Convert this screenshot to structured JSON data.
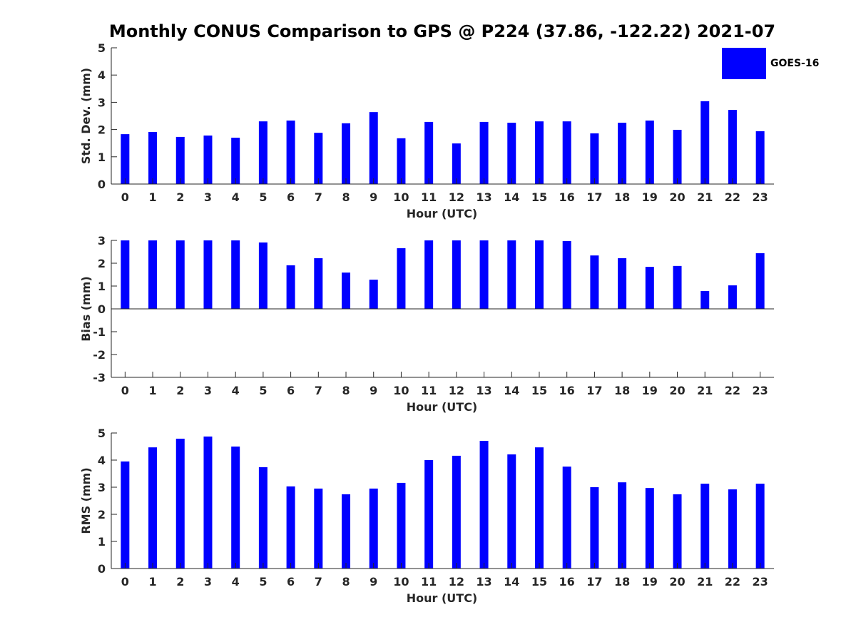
{
  "chart_data": {
    "title": "Monthly CONUS Comparison to GPS @ P224 (37.86, -122.22) 2021-07",
    "legend": {
      "entries": [
        "GOES-16"
      ],
      "placement": "top-right"
    },
    "colors": {
      "bar": "#0000ff"
    },
    "panels": [
      {
        "type": "bar",
        "ylabel": "Std. Dev. (mm)",
        "xlabel": "Hour (UTC)",
        "ylim": [
          0,
          5
        ],
        "yticks": [
          0,
          1,
          2,
          3,
          4,
          5
        ],
        "categories": [
          "0",
          "1",
          "2",
          "3",
          "4",
          "5",
          "6",
          "7",
          "8",
          "9",
          "10",
          "11",
          "12",
          "13",
          "14",
          "15",
          "16",
          "17",
          "18",
          "19",
          "20",
          "21",
          "22",
          "23"
        ],
        "values": [
          1.83,
          1.91,
          1.73,
          1.78,
          1.7,
          2.3,
          2.33,
          1.88,
          2.23,
          2.64,
          1.68,
          2.28,
          1.49,
          2.28,
          2.25,
          2.3,
          2.3,
          1.86,
          2.25,
          2.33,
          1.99,
          3.04,
          2.72,
          1.94
        ]
      },
      {
        "type": "bar",
        "ylabel": "Bias (mm)",
        "xlabel": "Hour (UTC)",
        "ylim": [
          -3,
          3
        ],
        "yticks": [
          -3,
          -2,
          -1,
          0,
          1,
          2,
          3
        ],
        "categories": [
          "0",
          "1",
          "2",
          "3",
          "4",
          "5",
          "6",
          "7",
          "8",
          "9",
          "10",
          "11",
          "12",
          "13",
          "14",
          "15",
          "16",
          "17",
          "18",
          "19",
          "20",
          "21",
          "22",
          "23"
        ],
        "values": [
          3.0,
          3.0,
          3.0,
          3.0,
          3.0,
          2.91,
          1.91,
          2.22,
          1.59,
          1.28,
          2.66,
          3.0,
          3.0,
          3.0,
          3.0,
          3.0,
          2.97,
          2.34,
          2.22,
          1.84,
          1.88,
          0.78,
          1.03,
          2.44
        ]
      },
      {
        "type": "bar",
        "ylabel": "RMS (mm)",
        "xlabel": "Hour (UTC)",
        "ylim": [
          0,
          5
        ],
        "yticks": [
          0,
          1,
          2,
          3,
          4,
          5
        ],
        "categories": [
          "0",
          "1",
          "2",
          "3",
          "4",
          "5",
          "6",
          "7",
          "8",
          "9",
          "10",
          "11",
          "12",
          "13",
          "14",
          "15",
          "16",
          "17",
          "18",
          "19",
          "20",
          "21",
          "22",
          "23"
        ],
        "values": [
          3.95,
          4.47,
          4.79,
          4.87,
          4.5,
          3.74,
          3.03,
          2.95,
          2.74,
          2.95,
          3.16,
          4.0,
          4.16,
          4.71,
          4.21,
          4.47,
          3.76,
          3.0,
          3.18,
          2.97,
          2.74,
          3.13,
          2.92,
          3.13
        ]
      }
    ]
  }
}
